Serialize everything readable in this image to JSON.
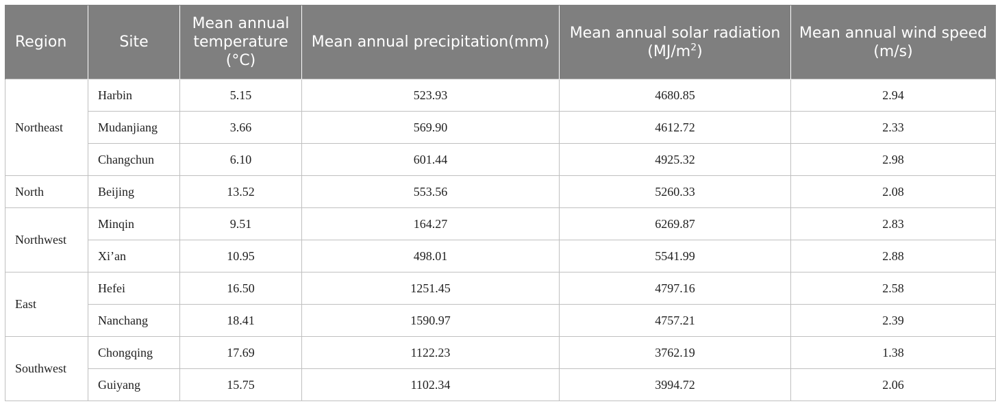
{
  "table": {
    "headers": [
      {
        "label": "Region"
      },
      {
        "label": "Site"
      },
      {
        "label": "Mean annual temperature (°C)"
      },
      {
        "label": "Mean annual precipitation(mm)"
      },
      {
        "label_main": "Mean annual solar radiation (MJ/m",
        "label_sup": "2",
        "label_end": ")"
      },
      {
        "label": "Mean annual wind speed (m/s)"
      }
    ],
    "regions": [
      {
        "name": "Northeast",
        "rows": [
          {
            "site": "Harbin",
            "temperature": "5.15",
            "precipitation": "523.93",
            "radiation": "4680.85",
            "wind": "2.94"
          },
          {
            "site": "Mudanjiang",
            "temperature": "3.66",
            "precipitation": "569.90",
            "radiation": "4612.72",
            "wind": "2.33"
          },
          {
            "site": "Changchun",
            "temperature": "6.10",
            "precipitation": "601.44",
            "radiation": "4925.32",
            "wind": "2.98"
          }
        ]
      },
      {
        "name": "North",
        "rows": [
          {
            "site": "Beijing",
            "temperature": "13.52",
            "precipitation": "553.56",
            "radiation": "5260.33",
            "wind": "2.08"
          }
        ]
      },
      {
        "name": "Northwest",
        "rows": [
          {
            "site": "Minqin",
            "temperature": "9.51",
            "precipitation": "164.27",
            "radiation": "6269.87",
            "wind": "2.83"
          },
          {
            "site": "Xi’an",
            "temperature": "10.95",
            "precipitation": "498.01",
            "radiation": "5541.99",
            "wind": "2.88"
          }
        ]
      },
      {
        "name": "East",
        "rows": [
          {
            "site": "Hefei",
            "temperature": "16.50",
            "precipitation": "1251.45",
            "radiation": "4797.16",
            "wind": "2.58"
          },
          {
            "site": "Nanchang",
            "temperature": "18.41",
            "precipitation": "1590.97",
            "radiation": "4757.21",
            "wind": "2.39"
          }
        ]
      },
      {
        "name": "Southwest",
        "rows": [
          {
            "site": "Chongqing",
            "temperature": "17.69",
            "precipitation": "1122.23",
            "radiation": "3762.19",
            "wind": "1.38"
          },
          {
            "site": "Guiyang",
            "temperature": "15.75",
            "precipitation": "1102.34",
            "radiation": "3994.72",
            "wind": "2.06"
          }
        ]
      }
    ]
  }
}
